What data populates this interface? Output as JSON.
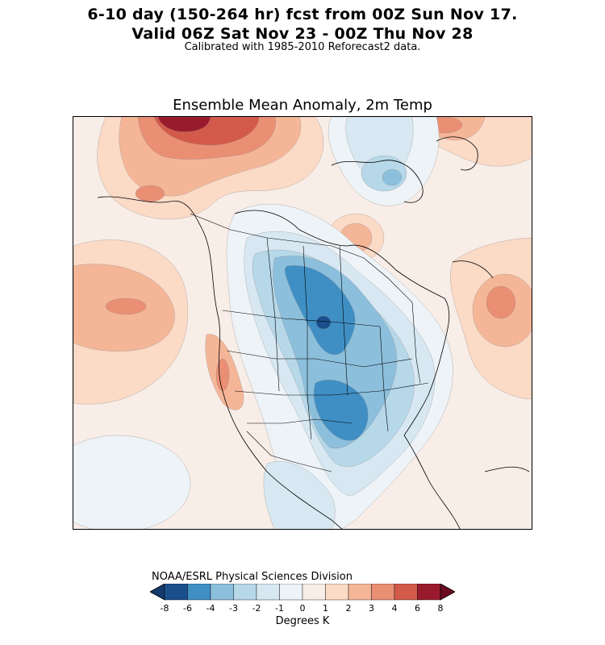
{
  "header": {
    "title_line1": "6-10 day (150-264 hr) fcst from 00Z Sun Nov 17.",
    "title_line2": "Valid 06Z Sat Nov 23 - 00Z Thu Nov 28",
    "subtitle": "Calibrated with 1985-2010 Reforecast2 data."
  },
  "map": {
    "title": "Ensemble Mean Anomaly, 2m Temp",
    "region": "North America",
    "field": "2m temperature anomaly (contour-filled)"
  },
  "footer": {
    "credit": "NOAA/ESRL Physical Sciences Division"
  },
  "colorbar": {
    "label": "Degrees K",
    "ticks": [
      "-8",
      "-6",
      "-4",
      "-3",
      "-2",
      "-1",
      "0",
      "1",
      "2",
      "3",
      "4",
      "6",
      "8"
    ],
    "colors": [
      "#1a4f8c",
      "#3f8fc4",
      "#8cbfdc",
      "#b6d8e9",
      "#d8e8f2",
      "#eef3f7",
      "#f8ede7",
      "#fbdac6",
      "#f5b698",
      "#ea8f74",
      "#d35a4a",
      "#9a1a2d"
    ],
    "under_color": "#123a6b",
    "over_color": "#6b0a1f"
  }
}
